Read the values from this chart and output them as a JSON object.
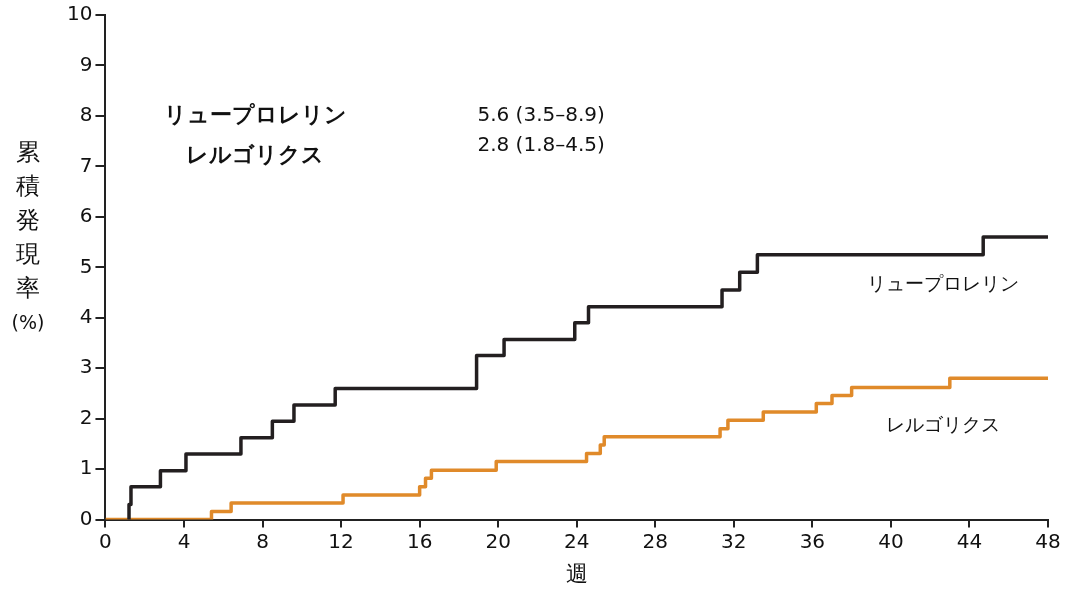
{
  "chart_data": {
    "type": "step",
    "xlabel": "週",
    "ylabel": "累積発現率 (%)",
    "xlim": [
      0,
      48
    ],
    "xticks": [
      0,
      4,
      8,
      12,
      16,
      20,
      24,
      28,
      32,
      36,
      40,
      44,
      48
    ],
    "ylim": [
      0,
      10
    ],
    "yticks": [
      0,
      1,
      2,
      3,
      4,
      5,
      6,
      7,
      8,
      9,
      10
    ],
    "grid": false,
    "legend": false,
    "line_style": "solid",
    "marker": "none",
    "annotations": [
      "リュープロレリン",
      "レルゴリクス",
      "5.6 (3.5–8.9)",
      "2.8 (1.8–4.5)"
    ],
    "series": [
      {
        "name": "リュープロレリン",
        "color": "#231f20",
        "x": [
          1.15,
          1.2,
          1.3,
          2.8,
          4.1,
          6.9,
          8.5,
          9.6,
          11.7,
          18.9,
          20.3,
          23.9,
          24.6,
          31.4,
          32.3,
          33.2,
          44.7,
          48
        ],
        "values": [
          0,
          0.3,
          0.65,
          0.97,
          1.3,
          1.62,
          1.95,
          2.27,
          2.6,
          3.25,
          3.57,
          3.9,
          4.22,
          4.55,
          4.9,
          5.25,
          5.6,
          5.6
        ]
      },
      {
        "name": "レルゴリクス",
        "color": "#e08a2a",
        "x": [
          0,
          5.4,
          6.4,
          12.1,
          16,
          16.3,
          16.6,
          19.9,
          24.5,
          25.2,
          25.4,
          31.3,
          31.7,
          33.5,
          36.2,
          37,
          38,
          43,
          48
        ],
        "values": [
          0,
          0.16,
          0.33,
          0.49,
          0.65,
          0.82,
          0.98,
          1.15,
          1.31,
          1.48,
          1.64,
          1.8,
          1.97,
          2.13,
          2.3,
          2.46,
          2.62,
          2.8,
          2.8
        ]
      }
    ]
  }
}
